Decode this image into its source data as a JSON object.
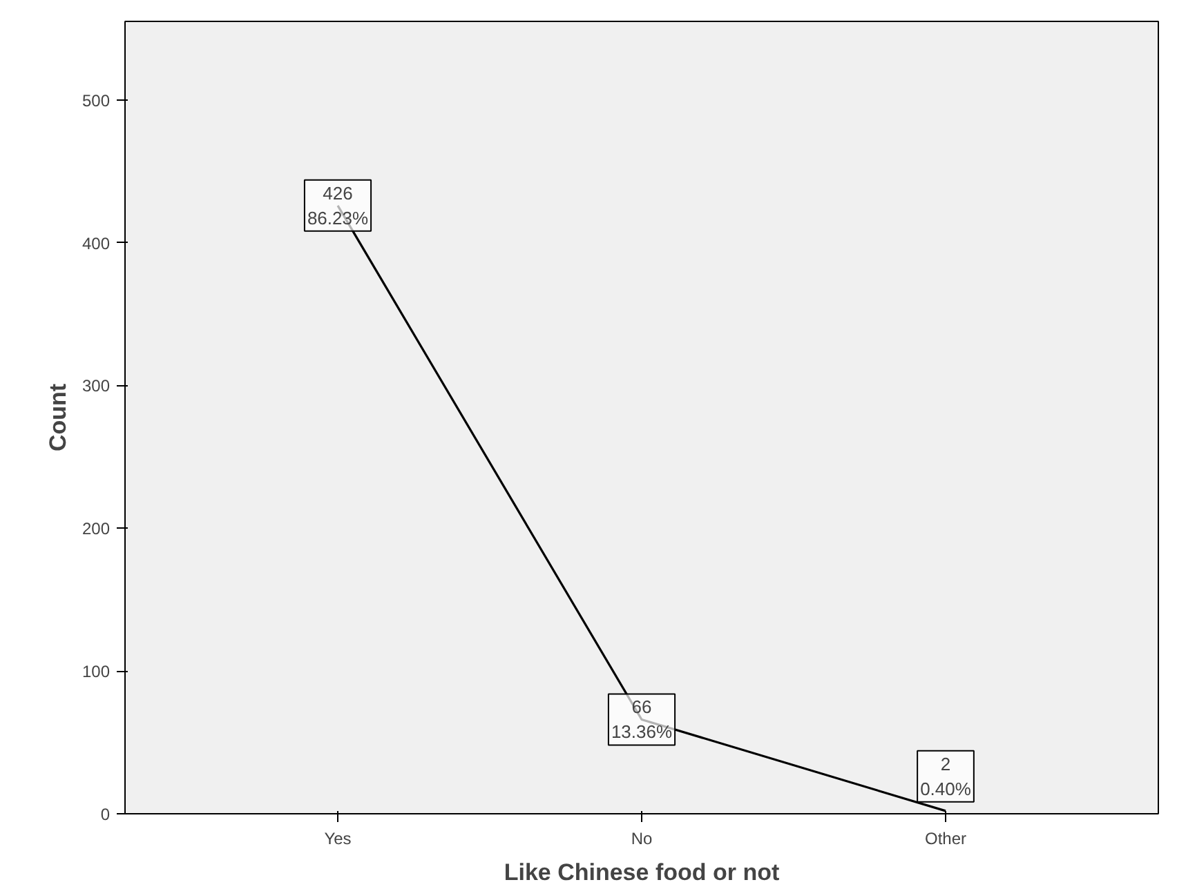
{
  "chart_data": {
    "type": "line",
    "xlabel": "Like Chinese food or not",
    "ylabel": "Count",
    "categories": [
      "Yes",
      "No",
      "Other"
    ],
    "values": [
      426,
      66,
      2
    ],
    "value_labels": [
      "426\n86.23%",
      "66\n13.36%",
      "2\n0.40%"
    ],
    "color": "#000000",
    "ylim": [
      0,
      555
    ],
    "yticks": [
      0,
      100,
      200,
      300,
      400,
      500
    ],
    "grid": false,
    "line_style": "solid"
  }
}
